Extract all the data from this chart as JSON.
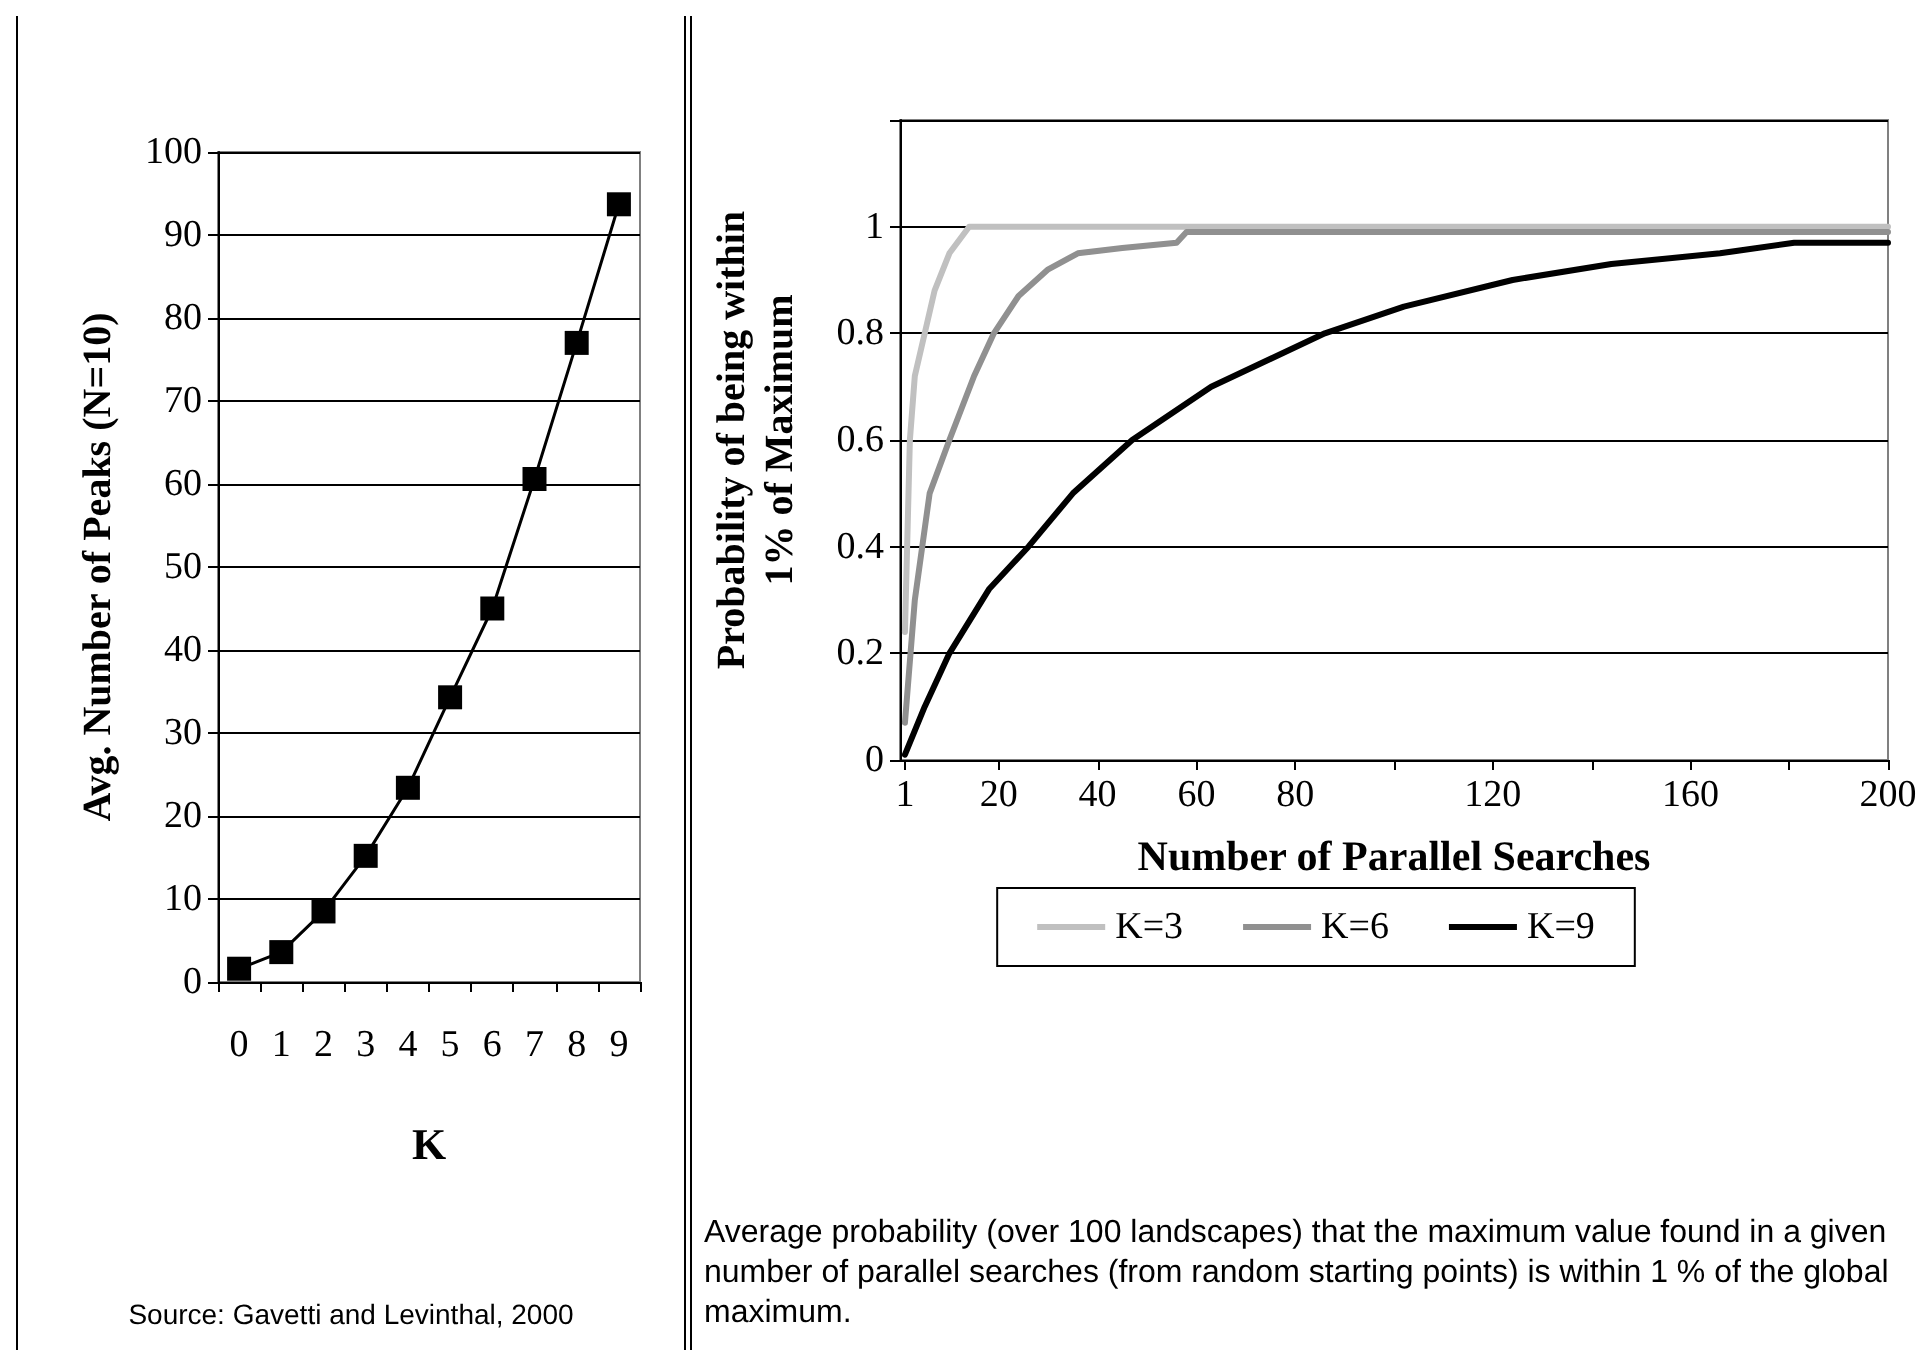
{
  "chart_data": [
    {
      "type": "line",
      "ylabel": "Avg. Number of Peaks (N=10)",
      "xlabel": "K",
      "categories": [
        "0",
        "1",
        "2",
        "3",
        "4",
        "5",
        "6",
        "7",
        "8",
        "9"
      ],
      "series": [
        {
          "color": "#000000",
          "values": [
            1.6,
            3.6,
            8.5,
            15.2,
            23.4,
            34.3,
            45,
            60.6,
            77,
            93.7
          ]
        }
      ],
      "ylim": [
        0,
        100
      ],
      "yticks": [
        0,
        10,
        20,
        30,
        40,
        50,
        60,
        70,
        80,
        90,
        100
      ],
      "grid": "y",
      "legend": false,
      "marker": "square",
      "line_style": "solid",
      "annotations": [
        "Source: Gavetti and Levinthal, 2000"
      ]
    },
    {
      "type": "line",
      "ylabel": "Probability of being within\n1% of Maximum",
      "xlabel": "Number of Parallel Searches",
      "series": [
        {
          "name": "K=3",
          "color": "#c0c0c0",
          "x": [
            1,
            2,
            3,
            5,
            7,
            10,
            14,
            20,
            200
          ],
          "values": [
            0.24,
            0.6,
            0.72,
            0.8,
            0.88,
            0.95,
            1,
            1,
            1
          ]
        },
        {
          "name": "K=6",
          "color": "#909090",
          "x": [
            1,
            3,
            6,
            10,
            15,
            19,
            24,
            30,
            36,
            45,
            56,
            58,
            200
          ],
          "values": [
            0.07,
            0.3,
            0.5,
            0.6,
            0.72,
            0.8,
            0.87,
            0.92,
            0.95,
            0.96,
            0.97,
            0.99,
            0.99
          ]
        },
        {
          "name": "K=9",
          "color": "#000000",
          "x": [
            1,
            5,
            10,
            18,
            26,
            35,
            47,
            63,
            86,
            102,
            124,
            144,
            166,
            181,
            200
          ],
          "values": [
            0.01,
            0.1,
            0.2,
            0.32,
            0.4,
            0.5,
            0.6,
            0.7,
            0.8,
            0.85,
            0.9,
            0.93,
            0.95,
            0.97,
            0.97
          ]
        }
      ],
      "xlim": [
        0,
        200
      ],
      "xticks": [
        1,
        20,
        40,
        60,
        80,
        {
          "value": 100,
          "label": null
        },
        120,
        {
          "value": 140,
          "label": null
        },
        160,
        {
          "value": 180,
          "label": null
        },
        200
      ],
      "ylim": [
        0,
        1.2
      ],
      "yticks": [
        0,
        0.2,
        0.4,
        0.6,
        0.8,
        1,
        {
          "value": 1.2,
          "label": null
        }
      ],
      "grid": "y",
      "legend": "bottom",
      "marker": "none",
      "line_style": "solid",
      "annotations": [
        "Average probability (over 100 landscapes) that the maximum value found in a given number of parallel searches (from random starting points) is within 1 % of the global maximum."
      ]
    }
  ]
}
